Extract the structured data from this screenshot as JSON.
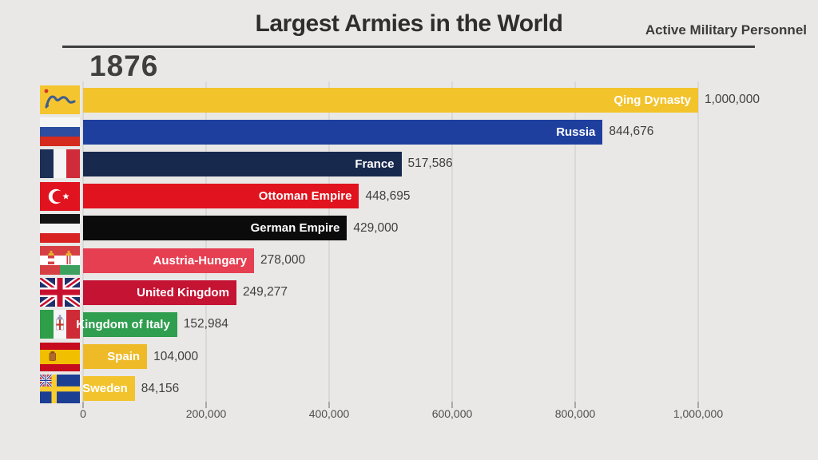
{
  "header": {
    "title": "Largest Armies in the World",
    "subtitle": "Active Military Personnel"
  },
  "year": "1876",
  "chart_data": {
    "type": "bar",
    "orientation": "horizontal",
    "title": "Largest Armies in the World",
    "subtitle": "Active Military Personnel",
    "year_label": "1876",
    "categories": [
      "Qing Dynasty",
      "Russia",
      "France",
      "Ottoman Empire",
      "German Empire",
      "Austria-Hungary",
      "United Kingdom",
      "Kingdom of Italy",
      "Spain",
      "Sweden"
    ],
    "values": [
      1000000,
      844676,
      517586,
      448695,
      429000,
      278000,
      249277,
      152984,
      104000,
      84156
    ],
    "value_labels": [
      "1,000,000",
      "844,676",
      "517,586",
      "448,695",
      "429,000",
      "278,000",
      "249,277",
      "152,984",
      "104,000",
      "84,156"
    ],
    "bar_colors": [
      "#f3c32c",
      "#1e3f9e",
      "#18294e",
      "#e0131e",
      "#0b0b0b",
      "#e63f52",
      "#c41333",
      "#2f9e4e",
      "#eeba28",
      "#f2c32c"
    ],
    "flags": [
      "qing-dynasty",
      "russia",
      "france",
      "ottoman-empire",
      "german-empire",
      "austria-hungary",
      "united-kingdom",
      "kingdom-of-italy",
      "spain",
      "sweden"
    ],
    "label_text_color": "#ffffff",
    "value_text_color": "#3f3f3f",
    "background_color": "#e9e8e6",
    "grid": true,
    "legend": false,
    "xlim": [
      0,
      1000000
    ],
    "x_ticks": [
      0,
      200000,
      400000,
      600000,
      800000,
      1000000
    ],
    "x_tick_labels": [
      "0",
      "200,000",
      "400,000",
      "600,000",
      "800,000",
      "1,000,000"
    ]
  }
}
